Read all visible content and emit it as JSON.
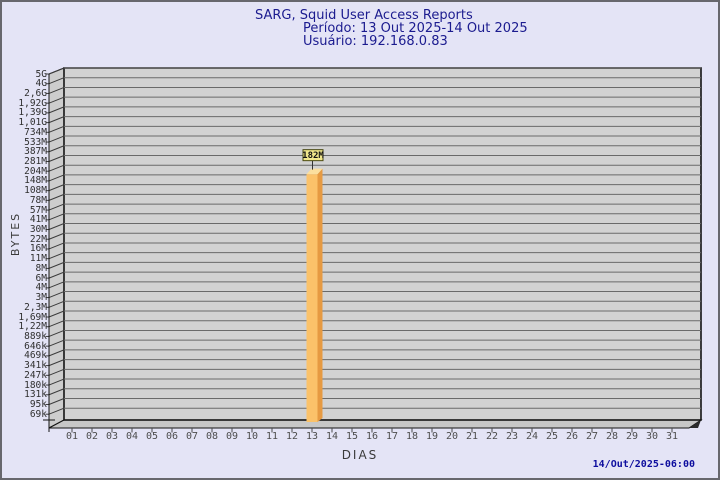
{
  "header": {
    "title": "SARG, Squid User Access Reports",
    "period_line": "Período: 13 Out 2025-14 Out 2025",
    "user_line": "Usuário: 192.168.0.83"
  },
  "footer": {
    "timestamp": "14/Out/2025-06:00"
  },
  "chart_data": {
    "type": "bar",
    "title": "SARG, Squid User Access Reports",
    "subtitle_period": "Período: 13 Out 2025-14 Out 2025",
    "subtitle_user": "Usuário: 192.168.0.83",
    "xlabel": "DIAS",
    "ylabel": "BYTES",
    "y_scale": "log",
    "grid": true,
    "y_tick_labels": [
      "5G",
      "4G",
      "2,6G",
      "1,92G",
      "1,39G",
      "1,01G",
      "734M",
      "533M",
      "387M",
      "281M",
      "204M",
      "148M",
      "108M",
      "78M",
      "57M",
      "41M",
      "30M",
      "22M",
      "16M",
      "11M",
      "8M",
      "6M",
      "4M",
      "3M",
      "2,3M",
      "1,69M",
      "1,22M",
      "889k",
      "646k",
      "469k",
      "341k",
      "247k",
      "180k",
      "131k",
      "95k",
      "69k"
    ],
    "categories": [
      "01",
      "02",
      "03",
      "04",
      "05",
      "06",
      "07",
      "08",
      "09",
      "10",
      "11",
      "12",
      "13",
      "14",
      "15",
      "16",
      "17",
      "18",
      "19",
      "20",
      "21",
      "22",
      "23",
      "24",
      "25",
      "26",
      "27",
      "28",
      "29",
      "30",
      "31"
    ],
    "values": [
      0,
      0,
      0,
      0,
      0,
      0,
      0,
      0,
      0,
      0,
      0,
      0,
      182000000,
      0,
      0,
      0,
      0,
      0,
      0,
      0,
      0,
      0,
      0,
      0,
      0,
      0,
      0,
      0,
      0,
      0,
      0
    ],
    "bars": [
      {
        "category": "13",
        "label": "182M"
      }
    ],
    "colors": {
      "page-bg": "#e4e4f6",
      "plot-bg": "#d2d2d2",
      "wall-bg": "#cdcdcd",
      "floor-bg": "#c7c7c7",
      "grid": "#6a6a6a",
      "frame-line": "#141414",
      "bar-front": "#fbc26a",
      "bar-side": "#e69a42",
      "bar-top": "#fbdf9e",
      "bar-label-bg": "#f0e68c",
      "bar-label-border": "#4a4a14",
      "title-text": "#1b1b8f",
      "timestamp-text": "#0d0d9e",
      "tick-text": "#2f2f2f",
      "axis-text": "#3a3a3a"
    }
  }
}
